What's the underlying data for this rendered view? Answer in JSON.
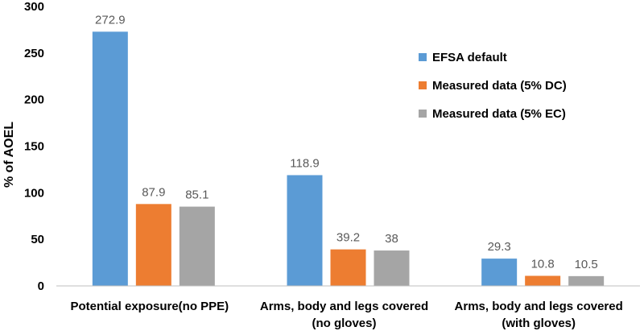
{
  "chart_data": {
    "type": "bar",
    "title": "",
    "xlabel": "",
    "ylabel": "% of AOEL",
    "ylim": [
      0,
      300
    ],
    "yticks": [
      0,
      50,
      100,
      150,
      200,
      250,
      300
    ],
    "grid": false,
    "legend": "top-right",
    "categories": [
      [
        "Potential exposure(no PPE)"
      ],
      [
        "Arms, body and legs covered",
        "(no gloves)"
      ],
      [
        "Arms, body and legs covered",
        "(with gloves)"
      ]
    ],
    "series": [
      {
        "name": "EFSA default",
        "color": "#5B9BD5",
        "values": [
          272.9,
          118.9,
          29.3
        ],
        "labels": [
          "272.9",
          "118.9",
          "29.3"
        ]
      },
      {
        "name": "Measured data (5% DC)",
        "color": "#ED7D31",
        "values": [
          87.9,
          39.2,
          10.8
        ],
        "labels": [
          "87.9",
          "39.2",
          "10.8"
        ]
      },
      {
        "name": "Measured data (5% EC)",
        "color": "#A5A5A5",
        "values": [
          85.1,
          38,
          10.5
        ],
        "labels": [
          "85.1",
          "38",
          "10.5"
        ]
      }
    ]
  }
}
